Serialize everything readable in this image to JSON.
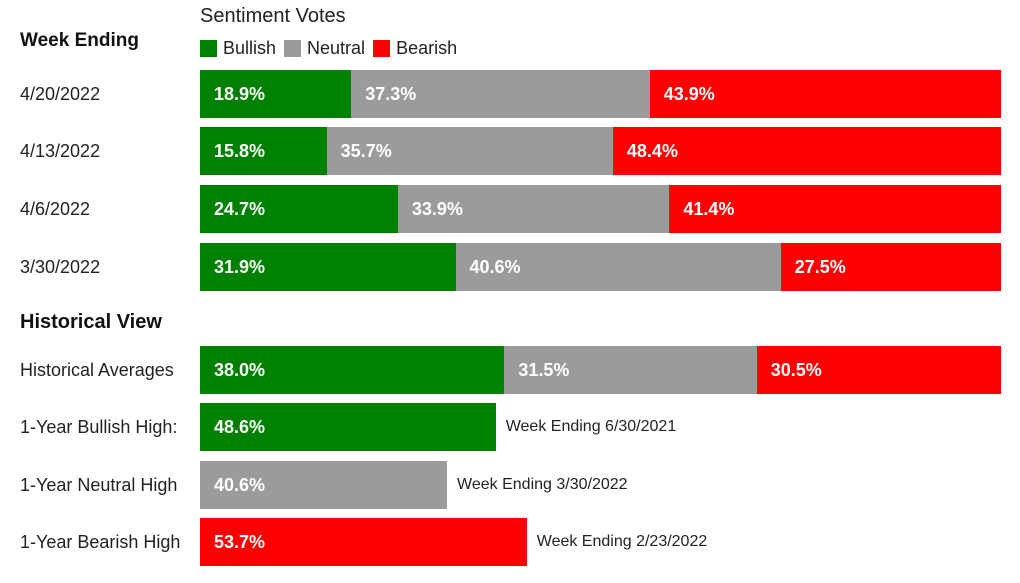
{
  "colors": {
    "bullish": "#008000",
    "neutral": "#9b9b9b",
    "bearish": "#ff0000"
  },
  "headings": {
    "legend_title": "Sentiment Votes",
    "week_ending": "Week Ending",
    "historical": "Historical View"
  },
  "legend": [
    {
      "label": "Bullish",
      "key": "bullish"
    },
    {
      "label": "Neutral",
      "key": "neutral"
    },
    {
      "label": "Bearish",
      "key": "bearish"
    }
  ],
  "chart_data": {
    "type": "bar",
    "stacked": true,
    "orientation": "horizontal",
    "title": "Sentiment Votes",
    "series_names": [
      "Bullish",
      "Neutral",
      "Bearish"
    ],
    "weekly": [
      {
        "label": "4/20/2022",
        "values": [
          18.9,
          37.3,
          43.9
        ],
        "texts": [
          "18.9%",
          "37.3%",
          "43.9%"
        ]
      },
      {
        "label": "4/13/2022",
        "values": [
          15.8,
          35.7,
          48.4
        ],
        "texts": [
          "15.8%",
          "35.7%",
          "48.4%"
        ]
      },
      {
        "label": "4/6/2022",
        "values": [
          24.7,
          33.9,
          41.4
        ],
        "texts": [
          "24.7%",
          "33.9%",
          "41.4%"
        ]
      },
      {
        "label": "3/30/2022",
        "values": [
          31.9,
          40.6,
          27.5
        ],
        "texts": [
          "31.9%",
          "40.6%",
          "27.5%"
        ]
      }
    ],
    "historical": [
      {
        "label": "Historical Averages",
        "segments": [
          {
            "key": "bullish",
            "value": 38.0,
            "text": "38.0%"
          },
          {
            "key": "neutral",
            "value": 31.5,
            "text": "31.5%"
          },
          {
            "key": "bearish",
            "value": 30.5,
            "text": "30.5%"
          }
        ],
        "note": ""
      },
      {
        "label": "1-Year Bullish High:",
        "segments": [
          {
            "key": "bullish",
            "value": 48.6,
            "text": "48.6%"
          }
        ],
        "note": "Week Ending 6/30/2021"
      },
      {
        "label": "1-Year Neutral High",
        "segments": [
          {
            "key": "neutral",
            "value": 40.6,
            "text": "40.6%"
          }
        ],
        "note": "Week Ending 3/30/2022"
      },
      {
        "label": "1-Year Bearish High",
        "segments": [
          {
            "key": "bearish",
            "value": 53.7,
            "text": "53.7%"
          }
        ],
        "note": "Week Ending 2/23/2022"
      }
    ]
  }
}
